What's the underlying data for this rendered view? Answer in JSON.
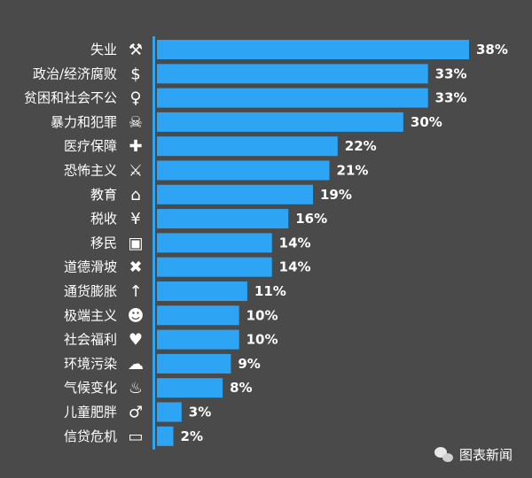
{
  "chart_data": {
    "type": "bar",
    "orientation": "horizontal",
    "categories": [
      "失业",
      "政治/经济腐败",
      "贫困和社会不公",
      "暴力和犯罪",
      "医疗保障",
      "恐怖主义",
      "教育",
      "税收",
      "移民",
      "道德滑坡",
      "通货膨胀",
      "极端主义",
      "社会福利",
      "环境污染",
      "气候变化",
      "儿童肥胖",
      "信贷危机"
    ],
    "values": [
      38,
      33,
      33,
      30,
      22,
      21,
      19,
      16,
      14,
      14,
      11,
      10,
      10,
      9,
      8,
      3,
      2
    ],
    "value_labels": [
      "38%",
      "33%",
      "33%",
      "30%",
      "22%",
      "21%",
      "19%",
      "16%",
      "14%",
      "14%",
      "11%",
      "10%",
      "10%",
      "9%",
      "8%",
      "3%",
      "2%"
    ],
    "icons": [
      "unemployment-icon",
      "corruption-icon",
      "poverty-icon",
      "crime-gun-icon",
      "healthcare-icon",
      "terrorism-icon",
      "education-cap-icon",
      "tax-icon",
      "immigration-luggage-icon",
      "moral-decline-icon",
      "inflation-icon",
      "extremism-mask-icon",
      "welfare-icon",
      "pollution-icon",
      "climate-fire-icon",
      "obesity-icon",
      "credit-crisis-icon"
    ],
    "xlim": [
      0,
      38
    ],
    "grid": false,
    "bar_color": "#2ea4f5",
    "axis_color": "#2ea4f5",
    "background": "#4a4a4a"
  },
  "watermark": {
    "text": "图表新闻"
  }
}
